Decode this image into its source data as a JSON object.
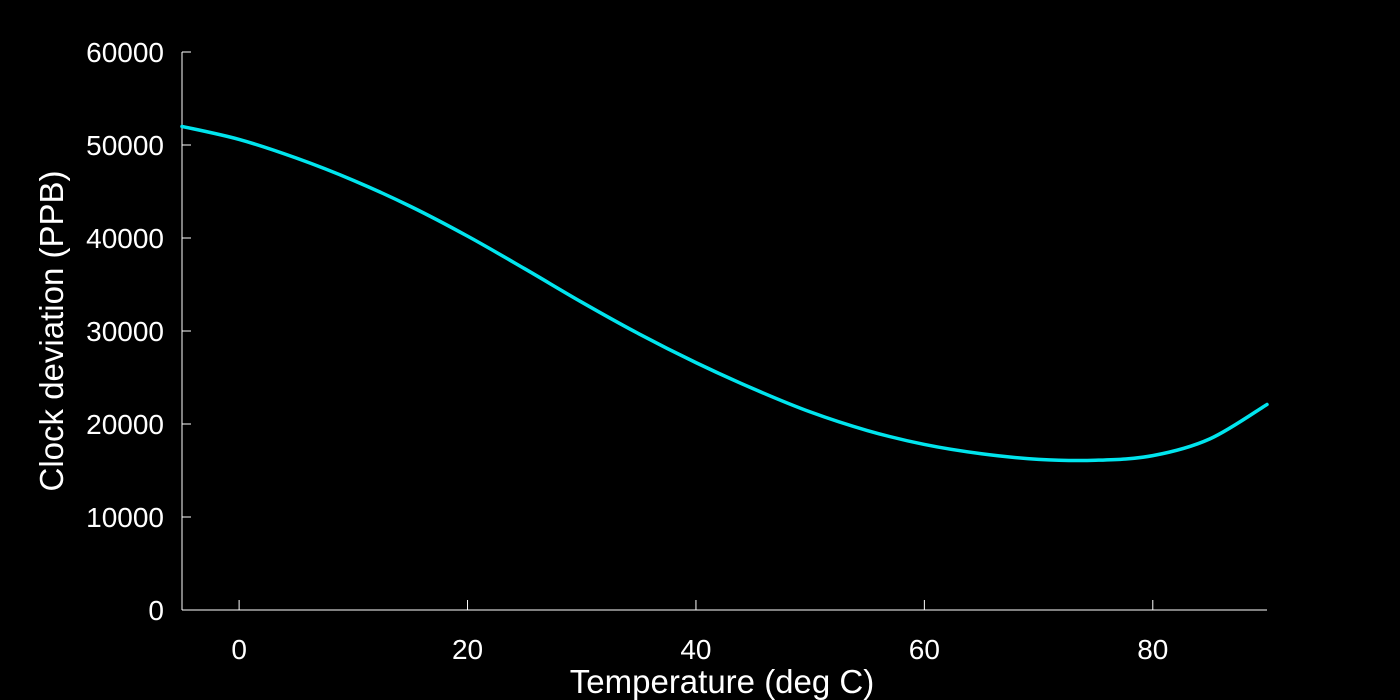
{
  "chart_data": {
    "type": "line",
    "title": "",
    "xlabel": "Temperature (deg C)",
    "ylabel": "Clock deviation (PPB)",
    "xlim": [
      -5,
      90
    ],
    "ylim": [
      0,
      60000
    ],
    "xticks": [
      0,
      20,
      40,
      60,
      80
    ],
    "yticks": [
      0,
      10000,
      20000,
      30000,
      40000,
      50000,
      60000
    ],
    "grid": false,
    "legend": "none",
    "colors": {
      "background": "#000000",
      "axes": "#ffffff",
      "series": "#00e5ee"
    },
    "series": [
      {
        "name": "clock deviation",
        "x": [
          -5,
          0,
          5,
          10,
          15,
          20,
          25,
          30,
          35,
          40,
          45,
          50,
          55,
          60,
          65,
          70,
          75,
          80,
          85,
          90
        ],
        "y": [
          52000,
          50600,
          48600,
          46200,
          43400,
          40200,
          36700,
          33100,
          29700,
          26600,
          23800,
          21300,
          19300,
          17800,
          16800,
          16200,
          16100,
          16600,
          18400,
          22100
        ]
      }
    ]
  }
}
